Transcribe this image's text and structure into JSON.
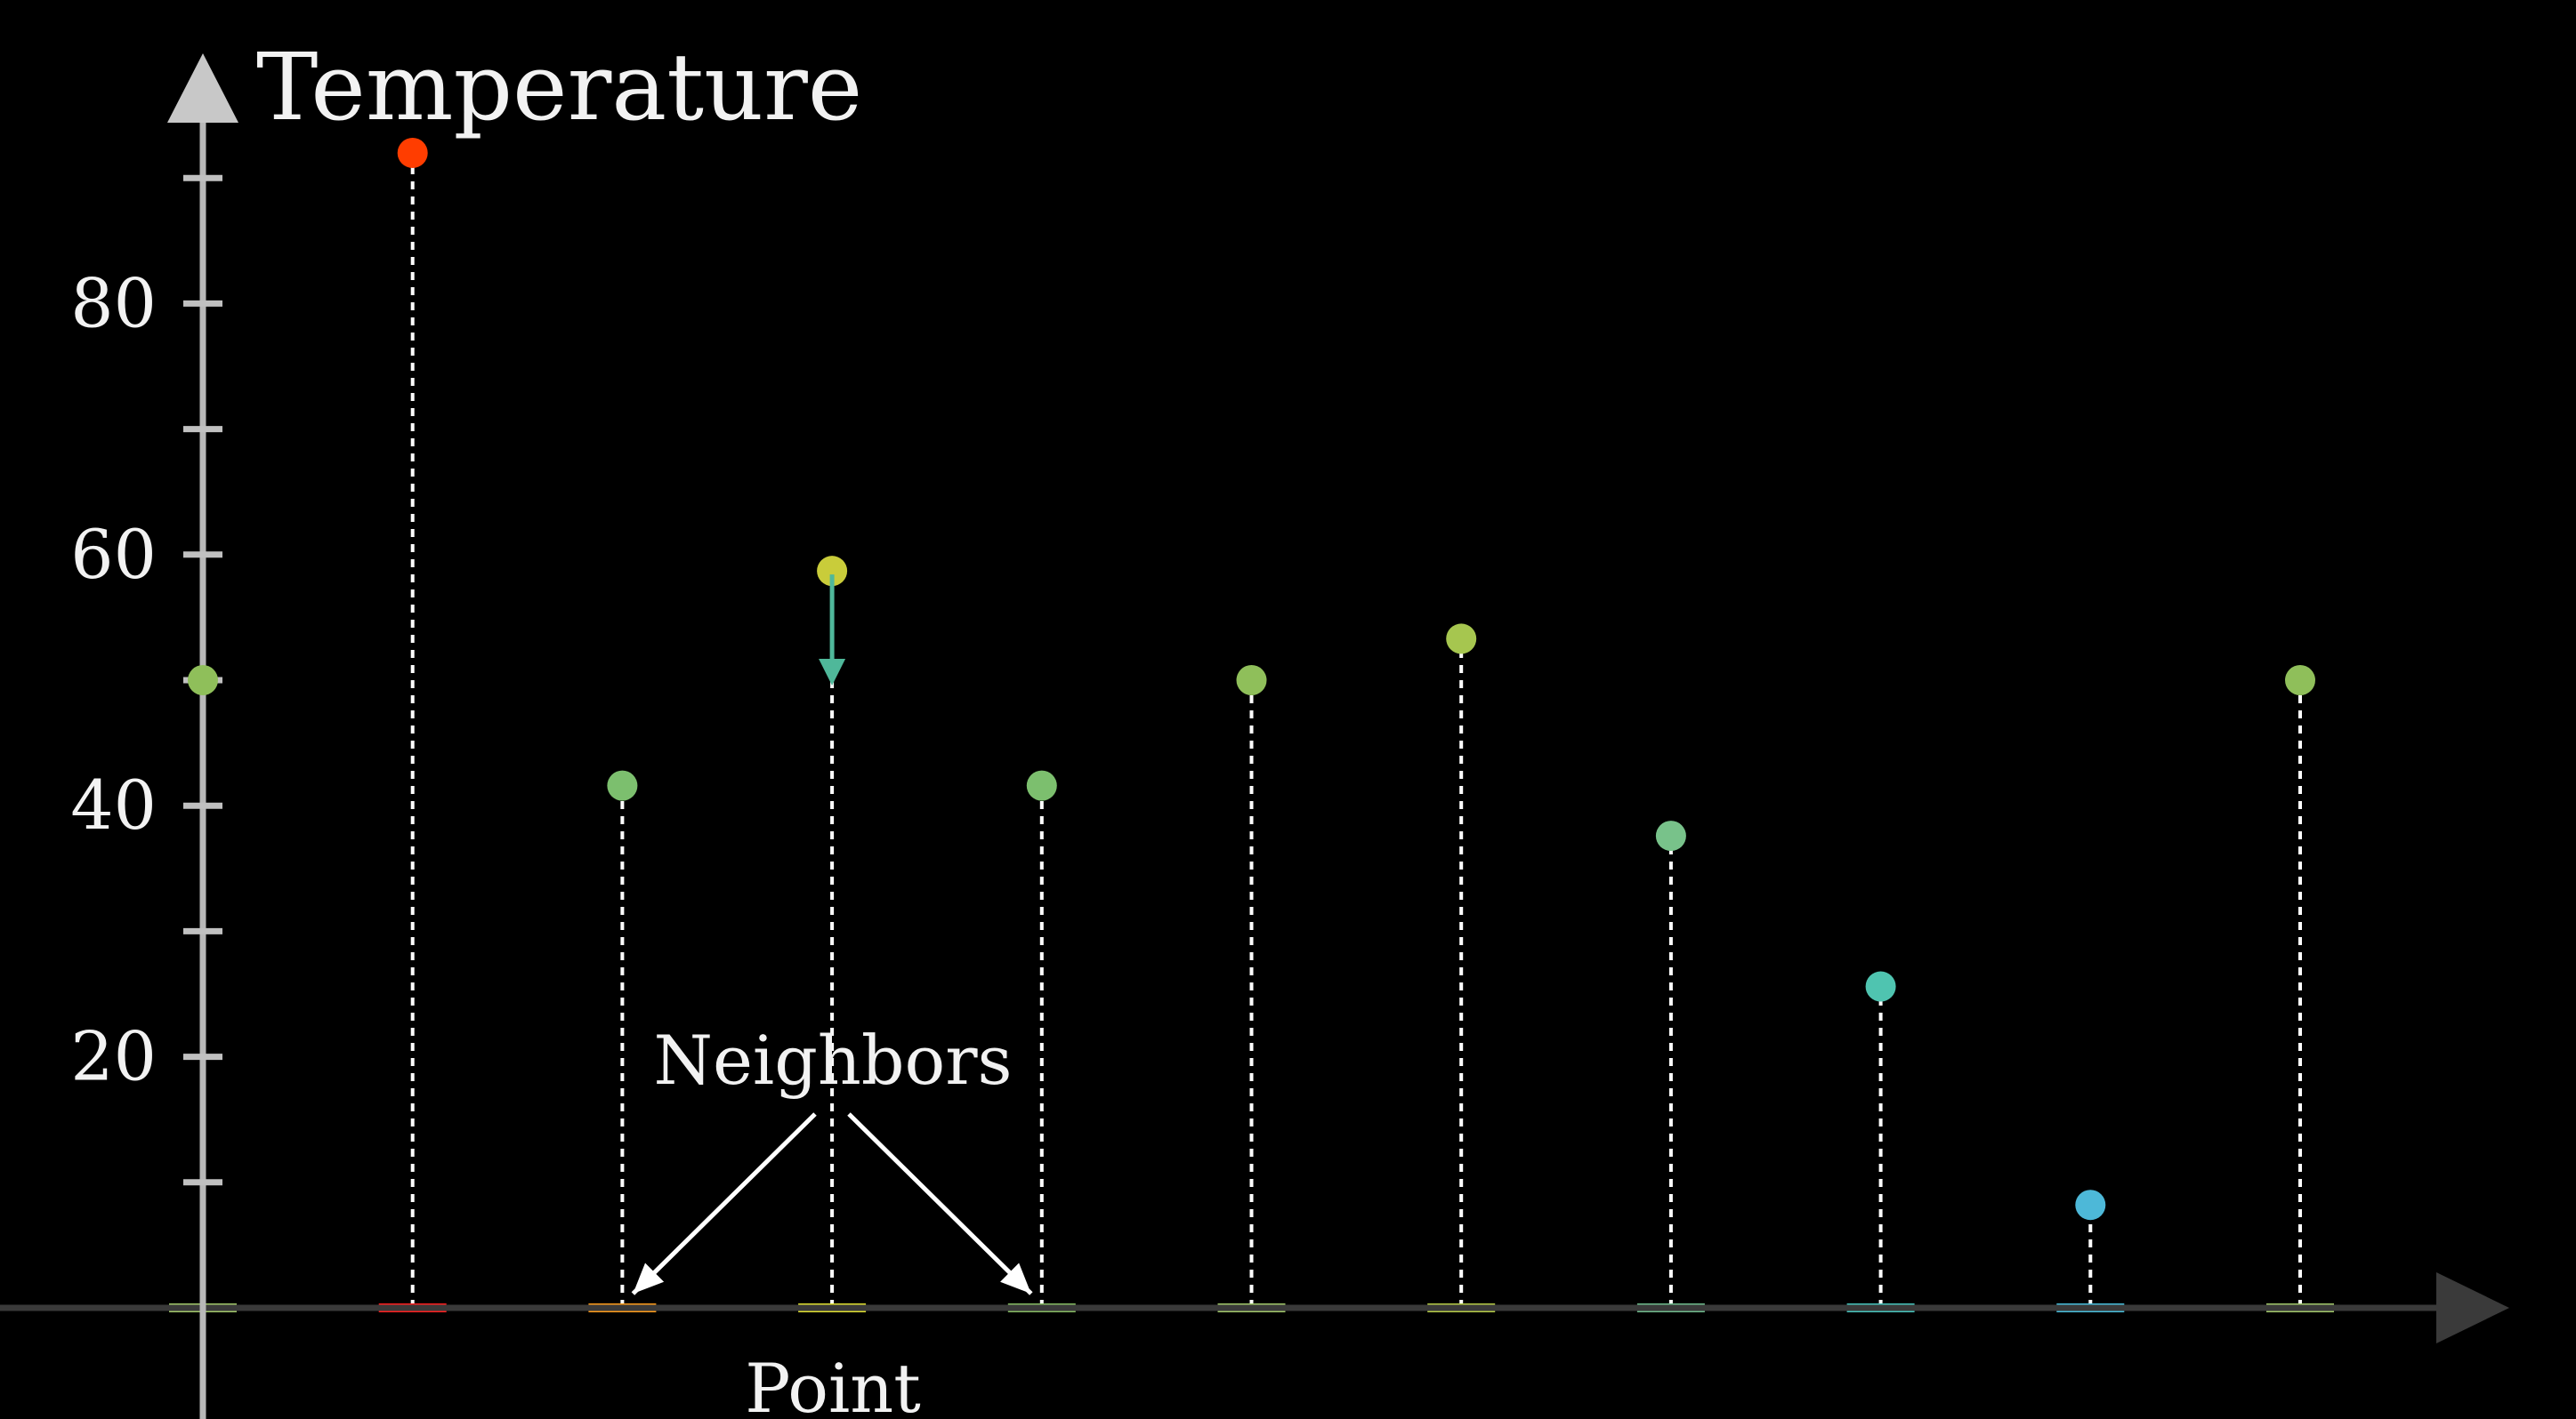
{
  "chart_data": {
    "type": "scatter",
    "ylabel": "Temperature",
    "xlabel": "Point",
    "ylim": [
      0,
      90
    ],
    "yticks_major": [
      20,
      40,
      60,
      80
    ],
    "yticks_minor": [
      10,
      30,
      50,
      70,
      90
    ],
    "x": [
      0,
      1,
      2,
      3,
      4,
      5,
      6,
      7,
      8,
      9,
      10
    ],
    "values": [
      50,
      92,
      41.6,
      58.7,
      41.6,
      50,
      53.3,
      37.6,
      25.6,
      8.2,
      50
    ],
    "colors": [
      "#8fbf5a",
      "#ff3d00",
      "#7cbf6e",
      "#c9cc3a",
      "#7cbf6e",
      "#8fbf5a",
      "#a6c64f",
      "#78c28a",
      "#4fc4b0",
      "#4db8d8",
      "#8fbf5a"
    ],
    "baseline_colors": [
      "#a2c86a",
      "#ff2020",
      "#ff9c1a",
      "#e0e030",
      "#86bb62",
      "#a2c86a",
      "#b6cc46",
      "#6fbb8c",
      "#45c4bc",
      "#48bedc",
      "#a2c86a"
    ],
    "grid": false,
    "annotations": [
      {
        "text": "Neighbors",
        "points_to": [
          2,
          4
        ]
      },
      {
        "text": "",
        "arrow": "down",
        "at_point": 3,
        "from": 58.7,
        "to": 50
      }
    ]
  }
}
